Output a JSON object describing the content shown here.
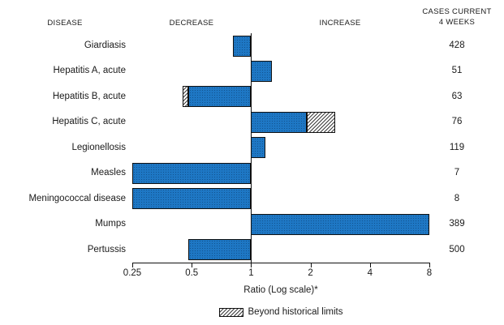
{
  "header": {
    "disease": "DISEASE",
    "decrease": "DECREASE",
    "increase": "INCREASE",
    "cases_line1": "CASES CURRENT",
    "cases_line2": "4 WEEKS"
  },
  "axis": {
    "label": "Ratio (Log scale)*",
    "ticks": [
      "0.25",
      "0.5",
      "1",
      "2",
      "4",
      "8"
    ]
  },
  "legend": {
    "beyond_historical_limits": "Beyond historical limits"
  },
  "colors": {
    "bar_fill": "#1e77c4",
    "bar_border": "#101010",
    "hatch_line": "#3c3c3c",
    "text": "#1a1a1a"
  },
  "chart_data": {
    "type": "bar",
    "orientation": "horizontal",
    "x_scale": "log2",
    "xlim": [
      0.25,
      8
    ],
    "x_ticks": [
      0.25,
      0.5,
      1,
      2,
      4,
      8
    ],
    "baseline": 1,
    "xlabel": "Ratio (Log scale)*",
    "grid": false,
    "legend_entries": [
      {
        "label": "Beyond historical limits",
        "style": "hatch"
      }
    ],
    "value_column_header": "CASES CURRENT 4 WEEKS",
    "rows": [
      {
        "disease": "Giardiasis",
        "cases_current_4_weeks": 428,
        "ratio": 0.81,
        "beyond_historical_limits": false,
        "segments": [
          {
            "from": 0.81,
            "to": 1,
            "style": "solid"
          }
        ]
      },
      {
        "disease": "Hepatitis A, acute",
        "cases_current_4_weeks": 51,
        "ratio": 1.28,
        "beyond_historical_limits": false,
        "segments": [
          {
            "from": 1,
            "to": 1.28,
            "style": "solid"
          }
        ]
      },
      {
        "disease": "Hepatitis B, acute",
        "cases_current_4_weeks": 63,
        "ratio": 0.45,
        "beyond_historical_limits": true,
        "segments": [
          {
            "from": 0.45,
            "to": 0.48,
            "style": "hatch"
          },
          {
            "from": 0.48,
            "to": 1,
            "style": "solid"
          }
        ]
      },
      {
        "disease": "Hepatitis C, acute",
        "cases_current_4_weeks": 76,
        "ratio": 2.67,
        "beyond_historical_limits": true,
        "segments": [
          {
            "from": 1,
            "to": 1.92,
            "style": "solid"
          },
          {
            "from": 1.92,
            "to": 2.67,
            "style": "hatch"
          }
        ]
      },
      {
        "disease": "Legionellosis",
        "cases_current_4_weeks": 119,
        "ratio": 1.18,
        "beyond_historical_limits": false,
        "segments": [
          {
            "from": 1,
            "to": 1.18,
            "style": "solid"
          }
        ]
      },
      {
        "disease": "Measles",
        "cases_current_4_weeks": 7,
        "ratio": 0.25,
        "beyond_historical_limits": false,
        "segments": [
          {
            "from": 0.25,
            "to": 1,
            "style": "solid"
          }
        ]
      },
      {
        "disease": "Meningococcal disease",
        "cases_current_4_weeks": 8,
        "ratio": 0.25,
        "beyond_historical_limits": false,
        "segments": [
          {
            "from": 0.25,
            "to": 1,
            "style": "solid"
          }
        ]
      },
      {
        "disease": "Mumps",
        "cases_current_4_weeks": 389,
        "ratio": 8,
        "beyond_historical_limits": false,
        "segments": [
          {
            "from": 1,
            "to": 8,
            "style": "solid"
          }
        ]
      },
      {
        "disease": "Pertussis",
        "cases_current_4_weeks": 500,
        "ratio": 0.48,
        "beyond_historical_limits": false,
        "segments": [
          {
            "from": 0.48,
            "to": 1,
            "style": "solid"
          }
        ]
      }
    ]
  }
}
